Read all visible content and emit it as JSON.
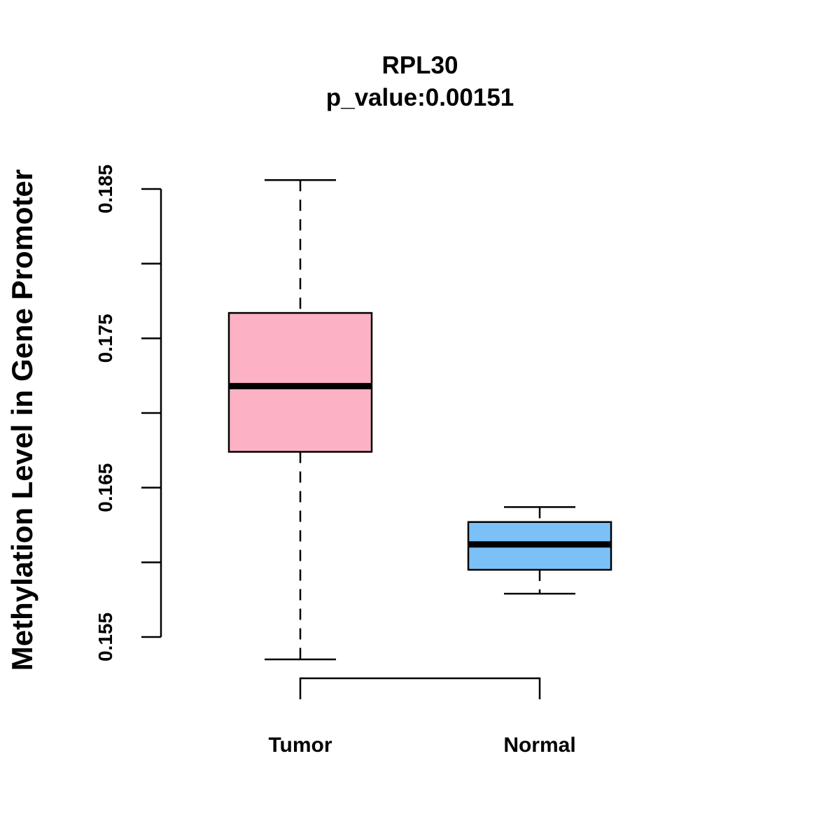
{
  "chart_data": {
    "type": "boxplot",
    "title": "RPL30",
    "subtitle": "p_value:0.00151",
    "xlabel": "",
    "ylabel": "Methylation Level in Gene Promoter",
    "ylim": [
      0.155,
      0.185
    ],
    "y_ticks": [
      0.155,
      0.16,
      0.165,
      0.17,
      0.175,
      0.18,
      0.185
    ],
    "y_tick_labels": [
      "0.155",
      "",
      "0.165",
      "",
      "0.175",
      "",
      "0.185"
    ],
    "categories": [
      "Tumor",
      "Normal"
    ],
    "boxes": [
      {
        "name": "Tumor",
        "whisker_low": 0.1535,
        "q1": 0.1674,
        "median": 0.1718,
        "q3": 0.1767,
        "whisker_high": 0.1856,
        "fill": "#FCB2C4"
      },
      {
        "name": "Normal",
        "whisker_low": 0.1579,
        "q1": 0.1595,
        "median": 0.1612,
        "q3": 0.1627,
        "whisker_high": 0.1637,
        "fill": "#7BC1F8"
      }
    ],
    "significance_bracket": {
      "from": "Tumor",
      "to": "Normal"
    },
    "grid": false,
    "legend": "none"
  }
}
